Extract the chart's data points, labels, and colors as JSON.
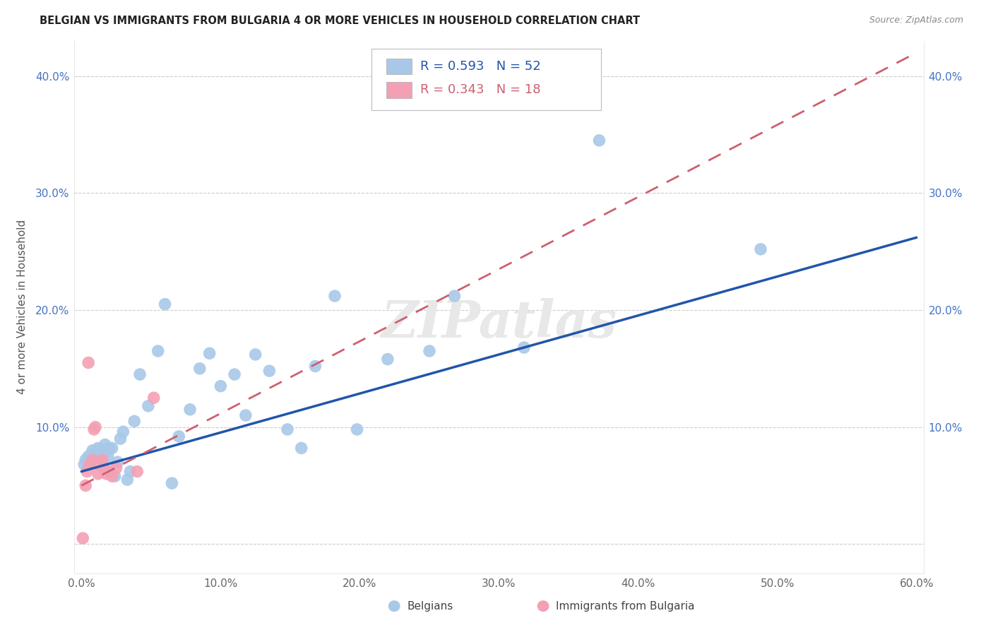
{
  "title": "BELGIAN VS IMMIGRANTS FROM BULGARIA 4 OR MORE VEHICLES IN HOUSEHOLD CORRELATION CHART",
  "source": "Source: ZipAtlas.com",
  "ylabel": "4 or more Vehicles in Household",
  "xlim": [
    -0.005,
    0.605
  ],
  "ylim": [
    -0.025,
    0.43
  ],
  "xticks": [
    0.0,
    0.1,
    0.2,
    0.3,
    0.4,
    0.5,
    0.6
  ],
  "yticks": [
    0.0,
    0.1,
    0.2,
    0.3,
    0.4
  ],
  "xtick_labels": [
    "0.0%",
    "10.0%",
    "20.0%",
    "30.0%",
    "40.0%",
    "50.0%",
    "60.0%"
  ],
  "ytick_labels": [
    "",
    "10.0%",
    "20.0%",
    "30.0%",
    "40.0%"
  ],
  "belgian_R": 0.593,
  "belgian_N": 52,
  "bulgarian_R": 0.343,
  "bulgarian_N": 18,
  "belgian_color": "#a8c8e8",
  "bulgarian_color": "#f4a0b4",
  "belgian_line_color": "#2255aa",
  "bulgarian_line_color": "#cc6070",
  "legend_label_belgian": "Belgians",
  "legend_label_bulgarian": "Immigrants from Bulgaria",
  "watermark": "ZIPatlas",
  "belgian_x": [
    0.002,
    0.003,
    0.004,
    0.005,
    0.006,
    0.007,
    0.008,
    0.009,
    0.01,
    0.011,
    0.012,
    0.013,
    0.014,
    0.015,
    0.016,
    0.017,
    0.018,
    0.019,
    0.02,
    0.022,
    0.024,
    0.026,
    0.028,
    0.03,
    0.033,
    0.035,
    0.038,
    0.042,
    0.048,
    0.055,
    0.06,
    0.065,
    0.07,
    0.078,
    0.085,
    0.092,
    0.1,
    0.11,
    0.118,
    0.125,
    0.135,
    0.148,
    0.158,
    0.168,
    0.182,
    0.198,
    0.22,
    0.25,
    0.268,
    0.318,
    0.372,
    0.488
  ],
  "belgian_y": [
    0.068,
    0.072,
    0.07,
    0.075,
    0.068,
    0.072,
    0.08,
    0.078,
    0.075,
    0.078,
    0.082,
    0.08,
    0.075,
    0.072,
    0.08,
    0.085,
    0.08,
    0.075,
    0.082,
    0.082,
    0.058,
    0.07,
    0.09,
    0.096,
    0.055,
    0.062,
    0.105,
    0.145,
    0.118,
    0.165,
    0.205,
    0.052,
    0.092,
    0.115,
    0.15,
    0.163,
    0.135,
    0.145,
    0.11,
    0.162,
    0.148,
    0.098,
    0.082,
    0.152,
    0.212,
    0.098,
    0.158,
    0.165,
    0.212,
    0.168,
    0.345,
    0.252
  ],
  "bulgarian_x": [
    0.001,
    0.003,
    0.004,
    0.006,
    0.008,
    0.009,
    0.01,
    0.012,
    0.013,
    0.015,
    0.016,
    0.018,
    0.02,
    0.022,
    0.025,
    0.04,
    0.052,
    0.005
  ],
  "bulgarian_y": [
    0.005,
    0.05,
    0.062,
    0.068,
    0.072,
    0.098,
    0.1,
    0.06,
    0.068,
    0.072,
    0.065,
    0.06,
    0.062,
    0.058,
    0.065,
    0.062,
    0.125,
    0.155
  ],
  "blue_line_x0": 0.0,
  "blue_line_y0": 0.062,
  "blue_line_x1": 0.6,
  "blue_line_y1": 0.262,
  "pink_line_x0": 0.0,
  "pink_line_y0": 0.05,
  "pink_line_x1": 0.6,
  "pink_line_y1": 0.42
}
